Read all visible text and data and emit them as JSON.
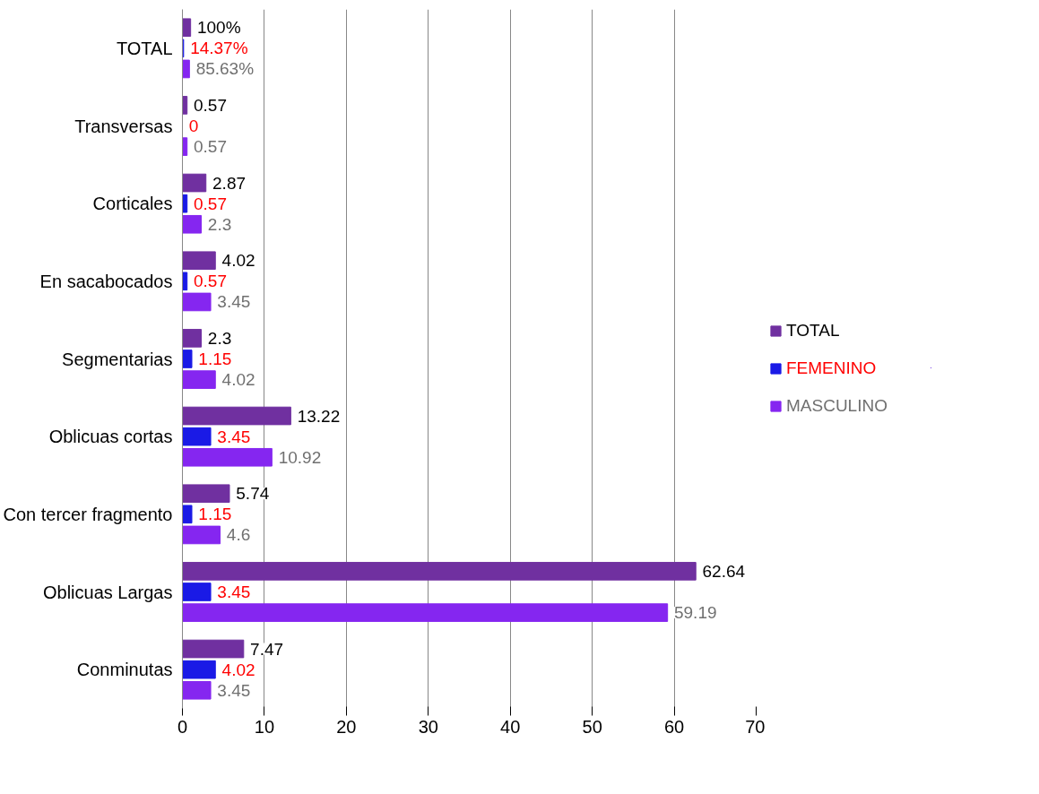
{
  "chart_data": {
    "type": "bar",
    "orientation": "horizontal",
    "categories": [
      "TOTAL",
      "Transversas",
      "Corticales",
      "En sacabocados",
      "Segmentarias",
      "Oblicuas cortas",
      "Con tercer fragmento",
      "Oblicuas Largas",
      "Conminutas"
    ],
    "series": [
      {
        "name": "TOTAL",
        "color": "#7030a0",
        "values": [
          1,
          0.57,
          2.87,
          4.02,
          2.3,
          13.22,
          5.74,
          62.64,
          7.47
        ],
        "value_labels": [
          "100%",
          "0.57",
          "2.87",
          "4.02",
          "2.3",
          "13.22",
          "5.74",
          "62.64",
          "7.47"
        ]
      },
      {
        "name": "FEMENINO",
        "color": "#1a1ae6",
        "values": [
          0.1437,
          0,
          0.57,
          0.57,
          1.15,
          3.45,
          1.15,
          3.45,
          4.02
        ],
        "value_labels": [
          "14.37%",
          "0",
          "0.57",
          "0.57",
          "1.15",
          "3.45",
          "1.15",
          "3.45",
          "4.02"
        ]
      },
      {
        "name": "MASCULINO",
        "color": "#8526f0",
        "values": [
          0.8563,
          0.57,
          2.3,
          3.45,
          4.02,
          10.92,
          4.6,
          59.19,
          3.45
        ],
        "value_labels": [
          "85.63%",
          "0.57",
          "2.3",
          "3.45",
          "4.02",
          "10.92",
          "4.6",
          "59.19",
          "3.45"
        ]
      }
    ],
    "xlim": [
      0,
      70
    ],
    "xticks": [
      0,
      10,
      20,
      30,
      40,
      50,
      60,
      70
    ],
    "grid": "x",
    "legend": "right"
  }
}
